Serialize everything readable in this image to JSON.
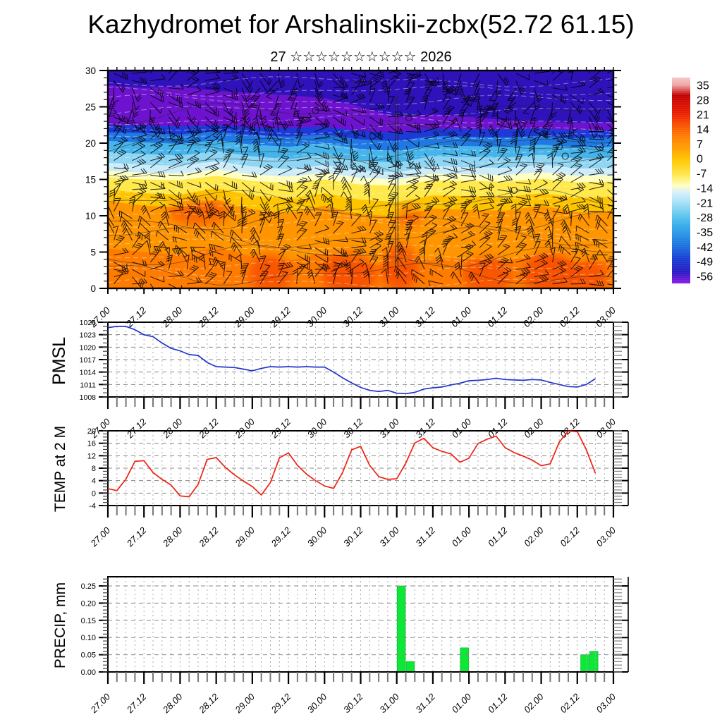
{
  "title": "Kazhydromet for Arshalinskii-zcbx(52.72 61.15)",
  "subtitle": "27 ☆☆☆☆☆☆☆☆☆☆ 2026",
  "x_axis": {
    "tick_labels": [
      "27.00",
      "27.12",
      "28.00",
      "28.12",
      "29.00",
      "29.12",
      "30.00",
      "30.12",
      "31.00",
      "31.12",
      "01.00",
      "01.12",
      "02.00",
      "02.12",
      "03.00"
    ],
    "tick_hours": [
      0,
      12,
      24,
      36,
      48,
      60,
      72,
      84,
      96,
      108,
      120,
      132,
      144,
      156,
      168
    ],
    "minor_step_hours": 3
  },
  "colorbar": {
    "tick_labels": [
      "35",
      "28",
      "21",
      "14",
      "7",
      "0",
      "-7",
      "-14",
      "-21",
      "-28",
      "-35",
      "-42",
      "-49",
      "-56"
    ],
    "tick_values": [
      35,
      28,
      21,
      14,
      7,
      0,
      -7,
      -14,
      -21,
      -28,
      -35,
      -42,
      -49,
      -56
    ],
    "stops": [
      {
        "v": 38.5,
        "c": "#f7c6c6"
      },
      {
        "v": 35,
        "c": "#f0a4a4"
      },
      {
        "v": 30,
        "c": "#c20000"
      },
      {
        "v": 24,
        "c": "#e01000"
      },
      {
        "v": 18,
        "c": "#f43a00"
      },
      {
        "v": 12,
        "c": "#ff7300"
      },
      {
        "v": 5,
        "c": "#ff9d00"
      },
      {
        "v": -1,
        "c": "#ffc800"
      },
      {
        "v": -8,
        "c": "#ffe852"
      },
      {
        "v": -13,
        "c": "#ffffc4"
      },
      {
        "v": -16,
        "c": "#d9f0fb"
      },
      {
        "v": -21,
        "c": "#a6e0f6"
      },
      {
        "v": -27,
        "c": "#5ec6ee"
      },
      {
        "v": -33,
        "c": "#2fa6e8"
      },
      {
        "v": -40,
        "c": "#1e7ce0"
      },
      {
        "v": -47,
        "c": "#1543d6"
      },
      {
        "v": -54,
        "c": "#2517c2"
      },
      {
        "v": -59.5,
        "c": "#8c1ae2"
      }
    ]
  },
  "chart_data": [
    {
      "type": "heatmap",
      "name": "temperature-wind-cross-section",
      "ylim": [
        0,
        30
      ],
      "ytick_labels": [
        "30",
        "25",
        "20",
        "15",
        "10",
        "5",
        "0"
      ],
      "ytick_values": [
        30,
        25,
        20,
        15,
        10,
        5,
        0
      ],
      "overlays": "wind-barbs",
      "bands": {
        "x_hours": [
          0,
          12,
          24,
          36,
          48,
          60,
          72,
          84,
          96,
          108,
          120,
          132,
          144,
          156,
          168
        ],
        "base_color": "#ff7c00",
        "layers": [
          {
            "color": "#ff9500",
            "boundary": [
              5.5,
              5.0,
              4.6,
              5.8,
              4.4,
              3.8,
              5.0,
              3.4,
              3.0,
              4.2,
              4.0,
              3.8,
              4.6,
              3.6,
              3.8
            ]
          },
          {
            "color": "#ffc400",
            "boundary": [
              12.0,
              11.4,
              11.1,
              12.2,
              10.9,
              10.4,
              11.4,
              10.2,
              9.9,
              11.0,
              10.8,
              10.7,
              11.4,
              10.5,
              10.7
            ]
          },
          {
            "color": "#ffe94d",
            "boundary": [
              13.6,
              13.1,
              12.9,
              13.8,
              12.8,
              12.4,
              13.1,
              12.2,
              11.9,
              12.8,
              12.7,
              12.6,
              13.1,
              12.5,
              12.6
            ]
          },
          {
            "color": "#ffffc2",
            "boundary": [
              15.3,
              15.0,
              14.9,
              15.5,
              14.8,
              14.5,
              15.0,
              14.3,
              14.1,
              14.9,
              14.8,
              14.7,
              15.1,
              14.6,
              14.7
            ]
          },
          {
            "color": "#cdecfa",
            "boundary": [
              16.2,
              15.9,
              15.8,
              16.4,
              15.7,
              15.4,
              15.9,
              15.2,
              15.0,
              15.8,
              15.7,
              15.6,
              16.0,
              15.5,
              15.6
            ]
          },
          {
            "color": "#8fd6f4",
            "boundary": [
              17.3,
              17.0,
              16.9,
              17.5,
              16.8,
              16.4,
              17.0,
              16.2,
              16.0,
              16.8,
              16.7,
              16.6,
              17.0,
              16.5,
              16.6
            ]
          },
          {
            "color": "#46b4ea",
            "boundary": [
              18.8,
              18.5,
              18.3,
              18.9,
              18.2,
              17.8,
              18.4,
              17.6,
              17.3,
              18.2,
              18.1,
              18.0,
              18.4,
              17.9,
              18.0
            ]
          },
          {
            "color": "#2079e2",
            "boundary": [
              20.3,
              20.1,
              19.9,
              20.4,
              19.8,
              19.5,
              20.0,
              19.2,
              18.9,
              19.7,
              19.6,
              19.5,
              19.8,
              19.4,
              19.5
            ]
          },
          {
            "color": "#1d3ad8",
            "boundary": [
              21.5,
              21.4,
              21.2,
              21.6,
              21.1,
              20.9,
              21.2,
              20.5,
              20.3,
              21.0,
              20.9,
              20.8,
              21.0,
              20.7,
              20.8
            ]
          },
          {
            "color": "#6d13cf",
            "boundary": [
              22.5,
              22.4,
              22.3,
              22.5,
              22.2,
              22.1,
              22.3,
              21.7,
              21.5,
              22.0,
              21.9,
              21.9,
              22.0,
              21.8,
              21.8
            ]
          },
          {
            "color": "#2f12ba",
            "boundary": [
              28.0,
              27.6,
              27.8,
              27.2,
              26.9,
              26.6,
              26.2,
              25.0,
              23.6,
              24.0,
              23.6,
              23.2,
              23.0,
              22.8,
              22.9
            ]
          }
        ]
      },
      "warm_blobs": [
        [
          30,
          10.5,
          10,
          1.8,
          0.45
        ],
        [
          54,
          2,
          7,
          2.8,
          0.5
        ],
        [
          80,
          2,
          9,
          3,
          0.55
        ],
        [
          97,
          3,
          6,
          3.2,
          0.55
        ],
        [
          100,
          10,
          4,
          1.6,
          0.4
        ],
        [
          126,
          1.8,
          8,
          2.6,
          0.5
        ],
        [
          147,
          2,
          9,
          3,
          0.55
        ],
        [
          160,
          1.5,
          6,
          2.4,
          0.5
        ]
      ],
      "blob_color": "#f23000",
      "contour_line_heights": [
        2,
        4.5,
        7,
        9.5,
        12,
        17,
        19,
        21,
        24
      ],
      "calm_circles": [
        [
          150,
          19.5
        ],
        [
          152,
          18.2
        ],
        [
          69,
          24.5
        ],
        [
          135,
          13.5
        ],
        [
          100,
          23.5
        ],
        [
          88,
          21
        ]
      ],
      "vertical_streak_hours": [
        95.6,
        96.4
      ],
      "streaks": {
        "count": 22,
        "color": "#ffffff",
        "opacity": 0.4
      },
      "barbs": {
        "cols": 28,
        "rows": 30,
        "seed": 7,
        "color": "#000000"
      }
    },
    {
      "type": "line",
      "name": "PMSL",
      "label": "PMSL",
      "color": "#2233cc",
      "ylim": [
        1008,
        1026
      ],
      "ytick_labels": [
        "1026",
        "1023",
        "1020",
        "1017",
        "1014",
        "1011",
        "1008"
      ],
      "ytick_values": [
        1026,
        1023,
        1020,
        1017,
        1014,
        1011,
        1008
      ],
      "grid_values": [
        1023,
        1020,
        1017,
        1014,
        1011
      ],
      "start_hour": 0,
      "step_hours": 3,
      "values": [
        1024.7,
        1025.0,
        1025.0,
        1024.2,
        1023.0,
        1022.5,
        1021.0,
        1019.7,
        1019.1,
        1018.2,
        1018.0,
        1016.3,
        1015.3,
        1015.2,
        1015.1,
        1014.7,
        1014.3,
        1014.9,
        1015.3,
        1015.2,
        1015.3,
        1015.2,
        1015.3,
        1015.2,
        1015.2,
        1014.0,
        1012.6,
        1011.4,
        1010.3,
        1009.6,
        1009.3,
        1009.6,
        1008.9,
        1008.8,
        1009.1,
        1009.9,
        1010.2,
        1010.4,
        1010.9,
        1011.3,
        1011.9,
        1012.0,
        1012.2,
        1012.5,
        1012.2,
        1012.1,
        1012.0,
        1012.2,
        1012.1,
        1011.5,
        1011.0,
        1010.5,
        1010.4,
        1011.0,
        1012.4
      ]
    },
    {
      "type": "line",
      "name": "TEMP at 2 M",
      "label": "TEMP at 2 M",
      "color": "#ee2211",
      "ylim": [
        -4,
        20
      ],
      "ytick_labels": [
        "20",
        "16",
        "12",
        "8",
        "4",
        "0",
        "-4"
      ],
      "ytick_values": [
        20,
        16,
        12,
        8,
        4,
        0,
        -4
      ],
      "grid_values": [
        16,
        12,
        8,
        4,
        0
      ],
      "start_hour": 0,
      "step_hours": 3,
      "values": [
        1.4,
        0.8,
        4.5,
        10.2,
        10.4,
        6.6,
        4.4,
        2.6,
        -0.9,
        -1.2,
        2.8,
        10.8,
        11.4,
        8.3,
        5.9,
        3.9,
        2.1,
        -0.6,
        3.4,
        11.3,
        12.9,
        8.9,
        6.1,
        4.0,
        2.3,
        1.5,
        6.6,
        13.9,
        15.0,
        8.9,
        5.3,
        4.4,
        4.6,
        9.6,
        16.1,
        17.6,
        14.6,
        13.4,
        12.6,
        9.9,
        11.2,
        15.9,
        17.3,
        18.3,
        14.6,
        13.0,
        11.9,
        10.6,
        8.8,
        9.4,
        16.4,
        19.9,
        19.7,
        13.9,
        6.4
      ]
    },
    {
      "type": "bar",
      "name": "PRECIP, mm",
      "label": "PRECIP, mm",
      "color": "#0ce836",
      "bar_edge": "#00b020",
      "ylim": [
        0,
        0.2766
      ],
      "ytick_labels": [
        "0.25",
        "0.20",
        "0.15",
        "0.10",
        "0.05",
        "0.00"
      ],
      "ytick_values": [
        0.25,
        0.2,
        0.15,
        0.1,
        0.05,
        0.0
      ],
      "grid_values": [
        0.25,
        0.2,
        0.15,
        0.1,
        0.05
      ],
      "bar_width_hours": 3,
      "bars": [
        {
          "start_hour": 96,
          "value": 0.25
        },
        {
          "start_hour": 99,
          "value": 0.03
        },
        {
          "start_hour": 117,
          "value": 0.07
        },
        {
          "start_hour": 157,
          "value": 0.05
        },
        {
          "start_hour": 160,
          "value": 0.06
        }
      ]
    }
  ]
}
